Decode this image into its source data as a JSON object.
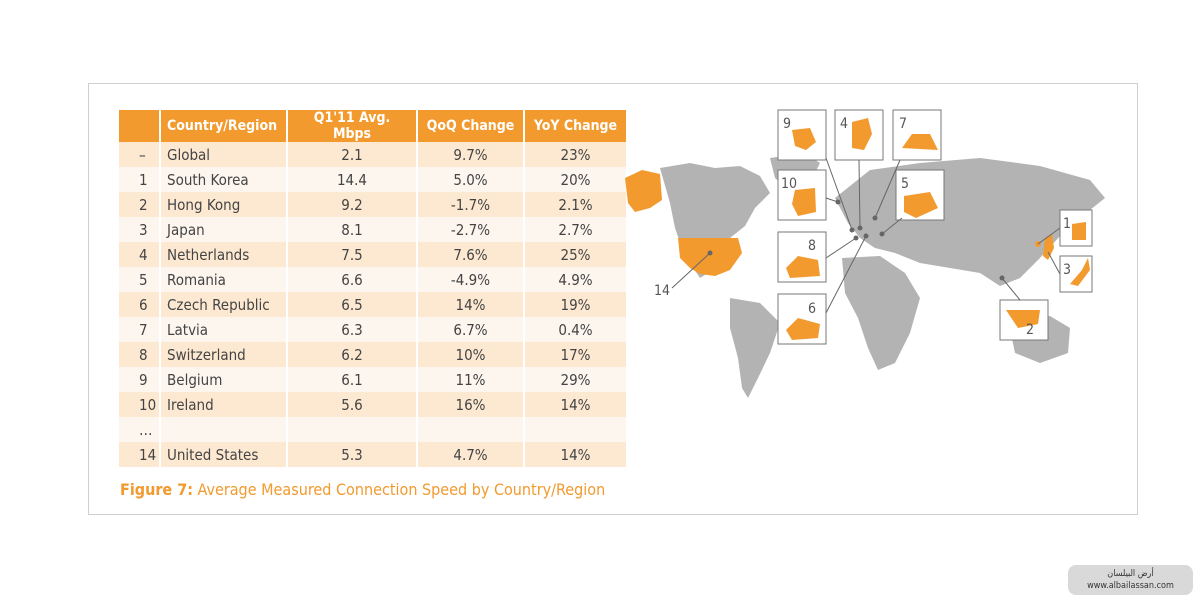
{
  "table": {
    "headers": [
      "",
      "Country/Region",
      "Q1'11 Avg. Mbps",
      "QoQ Change",
      "YoY Change"
    ],
    "rows": [
      [
        "–",
        "Global",
        "2.1",
        "9.7%",
        "23%"
      ],
      [
        "1",
        "South Korea",
        "14.4",
        "5.0%",
        "20%"
      ],
      [
        "2",
        "Hong Kong",
        "9.2",
        "-1.7%",
        "2.1%"
      ],
      [
        "3",
        "Japan",
        "8.1",
        "-2.7%",
        "2.7%"
      ],
      [
        "4",
        "Netherlands",
        "7.5",
        "7.6%",
        "25%"
      ],
      [
        "5",
        "Romania",
        "6.6",
        "-4.9%",
        "4.9%"
      ],
      [
        "6",
        "Czech Republic",
        "6.5",
        "14%",
        "19%"
      ],
      [
        "7",
        "Latvia",
        "6.3",
        "6.7%",
        "0.4%"
      ],
      [
        "8",
        "Switzerland",
        "6.2",
        "10%",
        "17%"
      ],
      [
        "9",
        "Belgium",
        "6.1",
        "11%",
        "29%"
      ],
      [
        "10",
        "Ireland",
        "5.6",
        "16%",
        "14%"
      ],
      [
        "…",
        "",
        "",
        "",
        ""
      ],
      [
        "14",
        "United States",
        "5.3",
        "4.7%",
        "14%"
      ]
    ]
  },
  "caption": {
    "label": "Figure 7:",
    "text": " Average Measured Connection Speed by Country/Region"
  },
  "map": {
    "callouts": [
      "9",
      "4",
      "7",
      "10",
      "5",
      "8",
      "6",
      "1",
      "3",
      "2",
      "14"
    ],
    "land_color": "#b3b3b3",
    "highlight_color": "#f29a2e"
  },
  "watermark": {
    "line1": "أرض البيلسان",
    "line2": "www.albailassan.com"
  }
}
